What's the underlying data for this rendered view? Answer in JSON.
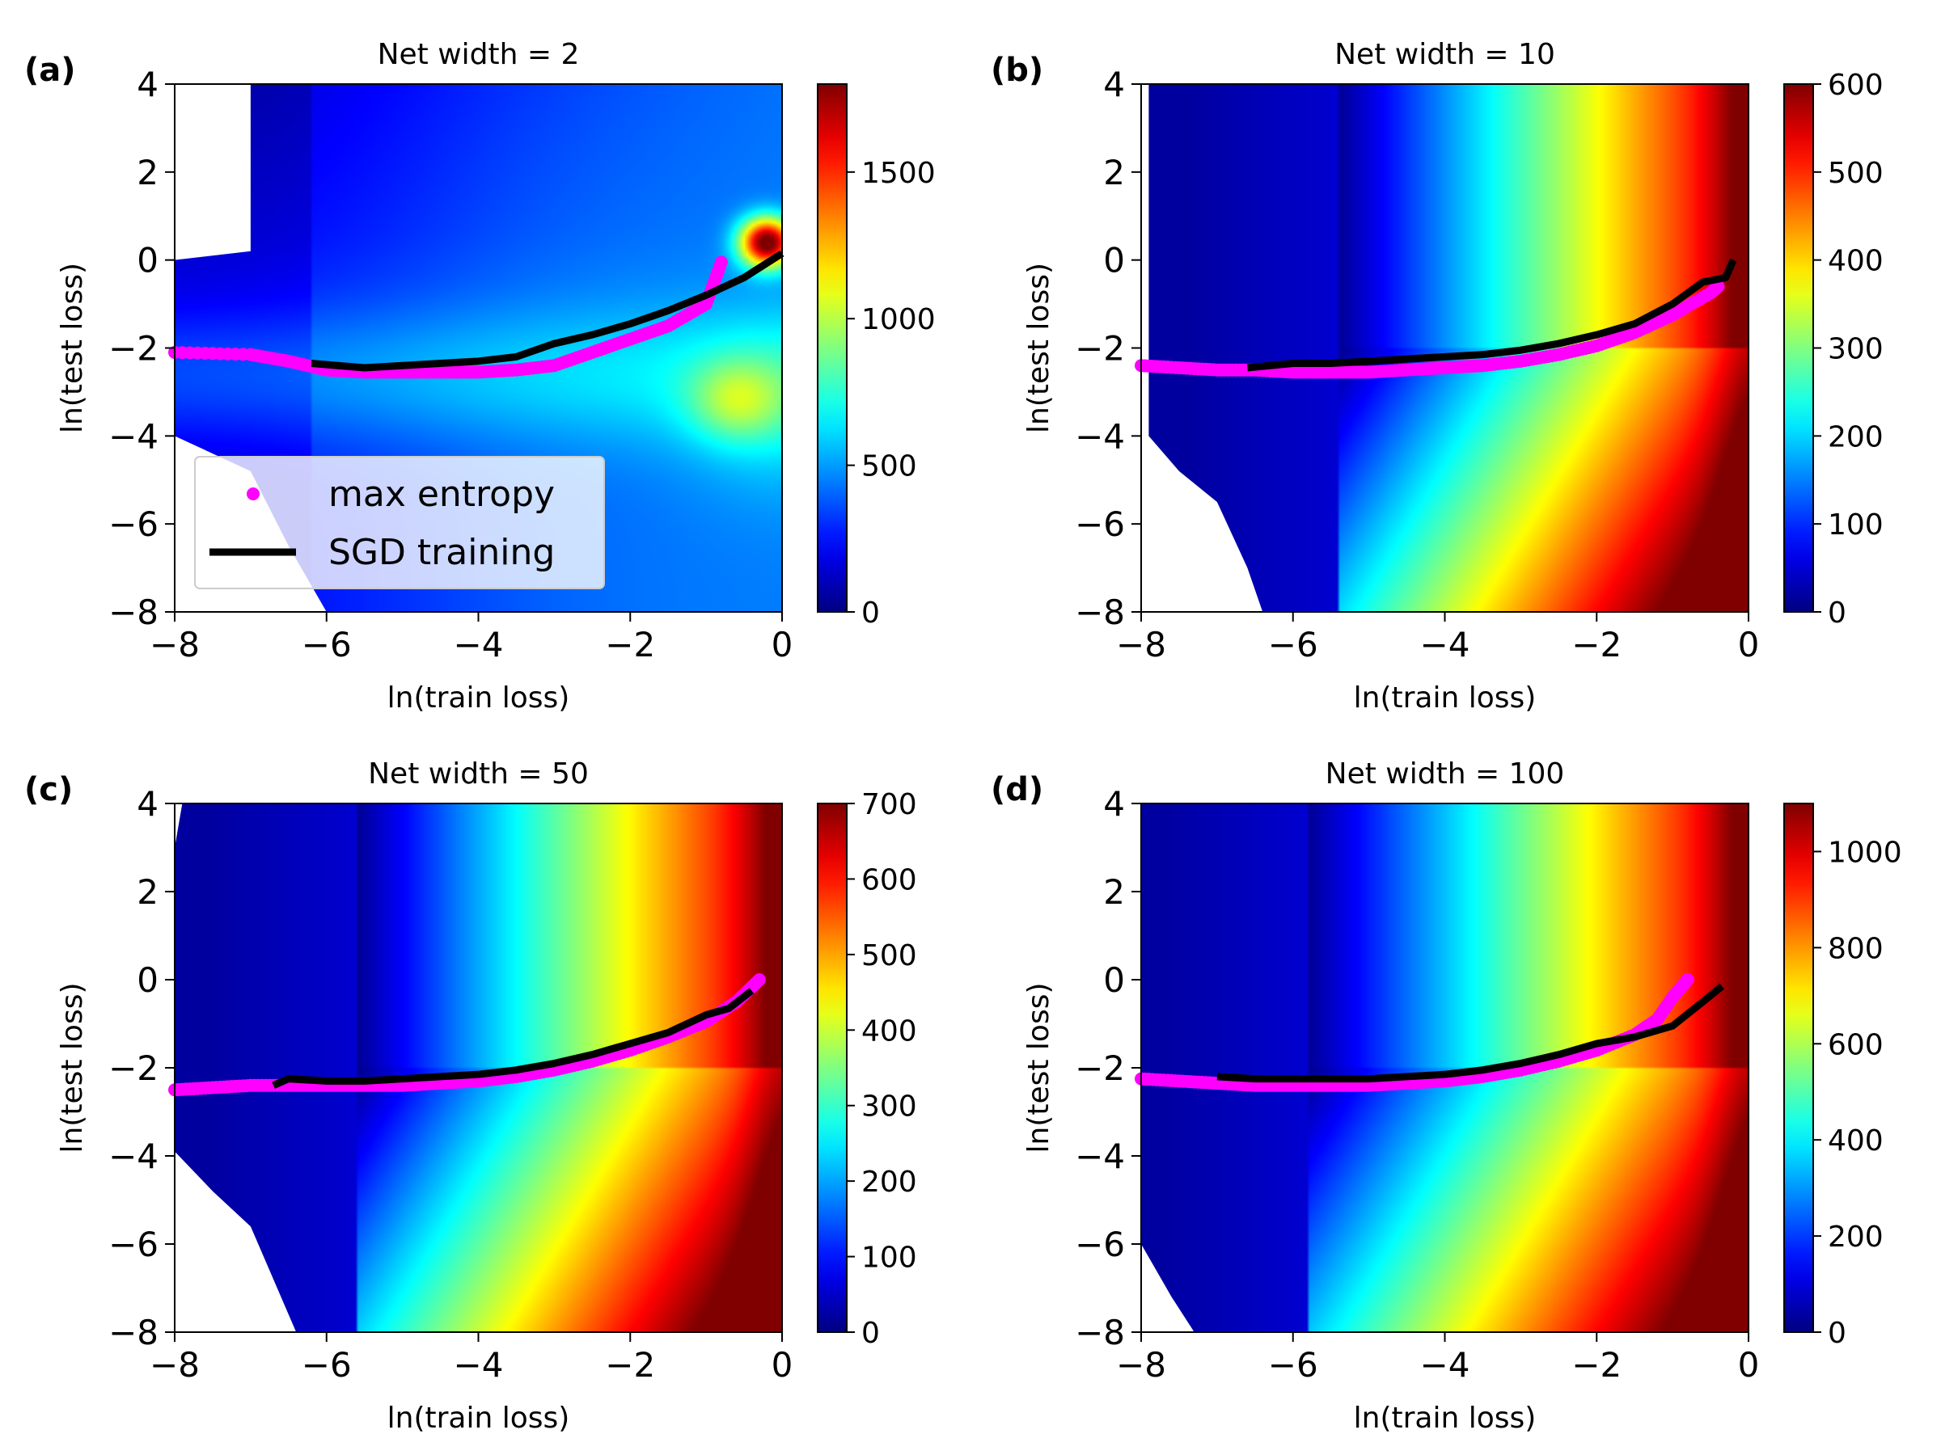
{
  "chart_data": [
    {
      "panel": "(a)",
      "type": "heatmap",
      "title": "Net width = 2",
      "xlabel": "ln(train loss)",
      "ylabel": "ln(test loss)",
      "xlim": [
        -8,
        0
      ],
      "ylim": [
        -8,
        4
      ],
      "xticks": [
        -8,
        -6,
        -4,
        -2,
        0
      ],
      "xtick_labels": [
        "−8",
        "−6",
        "−4",
        "−2",
        "0"
      ],
      "yticks": [
        4,
        2,
        0,
        -2,
        -4,
        -6,
        -8
      ],
      "ytick_labels": [
        "4",
        "2",
        "0",
        "−2",
        "−4",
        "−6",
        "−8"
      ],
      "colorbar": {
        "min": 0,
        "max": 1800,
        "ticks": [
          0,
          500,
          1000,
          1500
        ],
        "tick_labels": [
          "0",
          "500",
          "1000",
          "1500"
        ],
        "colormap": "jet"
      },
      "series": [
        {
          "name": "max entropy",
          "style": "scatter",
          "color": "#ff00ff",
          "x": [
            -8.0,
            -7.0,
            -6.5,
            -6.0,
            -5.5,
            -5.0,
            -4.5,
            -4.0,
            -3.5,
            -3.0,
            -2.5,
            -2.0,
            -1.5,
            -1.0,
            -0.8
          ],
          "y": [
            -2.1,
            -2.15,
            -2.3,
            -2.5,
            -2.55,
            -2.55,
            -2.55,
            -2.55,
            -2.5,
            -2.4,
            -2.1,
            -1.8,
            -1.5,
            -1.0,
            -0.05
          ]
        },
        {
          "name": "SGD training",
          "style": "line",
          "color": "#000000",
          "x": [
            -6.2,
            -5.5,
            -5.0,
            -4.5,
            -4.0,
            -3.5,
            -3.0,
            -2.5,
            -2.0,
            -1.5,
            -1.0,
            -0.5,
            0.0
          ],
          "y": [
            -2.35,
            -2.45,
            -2.4,
            -2.35,
            -2.3,
            -2.2,
            -1.9,
            -1.7,
            -1.45,
            -1.15,
            -0.8,
            -0.4,
            0.15
          ]
        }
      ],
      "legend": {
        "location": "lower-left",
        "entries": [
          "max entropy",
          "SGD training"
        ]
      },
      "field": {
        "type": "narrow",
        "base": 280,
        "base_norm_note": "values in colorbar units",
        "hotspot": {
          "x": -0.2,
          "y": 0.4,
          "peak": 1650
        },
        "blob": {
          "x": -0.6,
          "y": -3.2,
          "peak": 650
        }
      },
      "mask": {
        "left_edge_above": [
          [
            -7.0,
            4
          ],
          [
            -7.0,
            0.2
          ],
          [
            -8.0,
            0.0
          ]
        ],
        "lower_left": [
          [
            -8.0,
            -4.0
          ],
          [
            -7.0,
            -4.8
          ],
          [
            -6.5,
            -6.5
          ],
          [
            -6.0,
            -8.0
          ]
        ]
      }
    },
    {
      "panel": "(b)",
      "type": "heatmap",
      "title": "Net width = 10",
      "xlabel": "ln(train loss)",
      "ylabel": "ln(test loss)",
      "xlim": [
        -8,
        0
      ],
      "ylim": [
        -8,
        4
      ],
      "xticks": [
        -8,
        -6,
        -4,
        -2,
        0
      ],
      "xtick_labels": [
        "−8",
        "−6",
        "−4",
        "−2",
        "0"
      ],
      "yticks": [
        4,
        2,
        0,
        -2,
        -4,
        -6,
        -8
      ],
      "ytick_labels": [
        "4",
        "2",
        "0",
        "−2",
        "−4",
        "−6",
        "−8"
      ],
      "colorbar": {
        "min": 0,
        "max": 600,
        "ticks": [
          0,
          100,
          200,
          300,
          400,
          500,
          600
        ],
        "tick_labels": [
          "0",
          "100",
          "200",
          "300",
          "400",
          "500",
          "600"
        ],
        "colormap": "jet"
      },
      "series": [
        {
          "name": "max entropy",
          "style": "scatter",
          "color": "#ff00ff",
          "x": [
            -8.0,
            -7.5,
            -7.0,
            -6.5,
            -6.0,
            -5.5,
            -5.0,
            -4.5,
            -4.0,
            -3.5,
            -3.0,
            -2.5,
            -2.0,
            -1.5,
            -1.0,
            -0.5,
            -0.4
          ],
          "y": [
            -2.4,
            -2.45,
            -2.5,
            -2.5,
            -2.55,
            -2.55,
            -2.55,
            -2.5,
            -2.45,
            -2.4,
            -2.3,
            -2.15,
            -1.95,
            -1.65,
            -1.25,
            -0.75,
            -0.6
          ]
        },
        {
          "name": "SGD training",
          "style": "line",
          "color": "#000000",
          "x": [
            -6.6,
            -6.0,
            -5.5,
            -5.0,
            -4.5,
            -4.0,
            -3.5,
            -3.0,
            -2.5,
            -2.0,
            -1.5,
            -1.0,
            -0.6,
            -0.3,
            -0.2
          ],
          "y": [
            -2.45,
            -2.35,
            -2.35,
            -2.3,
            -2.25,
            -2.2,
            -2.15,
            -2.05,
            -1.9,
            -1.7,
            -1.45,
            -1.0,
            -0.5,
            -0.4,
            0.0
          ]
        }
      ],
      "field": {
        "type": "broad",
        "dark_band": -5.4
      },
      "mask": {
        "lower_left": [
          [
            -7.9,
            4
          ],
          [
            -7.9,
            -1.0
          ],
          [
            -7.9,
            -4.0
          ],
          [
            -7.5,
            -4.8
          ],
          [
            -7.0,
            -5.5
          ],
          [
            -6.6,
            -7.0
          ],
          [
            -6.4,
            -8.0
          ]
        ]
      }
    },
    {
      "panel": "(c)",
      "type": "heatmap",
      "title": "Net width = 50",
      "xlabel": "ln(train loss)",
      "ylabel": "ln(test loss)",
      "xlim": [
        -8,
        0
      ],
      "ylim": [
        -8,
        4
      ],
      "xticks": [
        -8,
        -6,
        -4,
        -2,
        0
      ],
      "xtick_labels": [
        "−8",
        "−6",
        "−4",
        "−2",
        "0"
      ],
      "yticks": [
        4,
        2,
        0,
        -2,
        -4,
        -6,
        -8
      ],
      "ytick_labels": [
        "4",
        "2",
        "0",
        "−2",
        "−4",
        "−6",
        "−8"
      ],
      "colorbar": {
        "min": 0,
        "max": 700,
        "ticks": [
          0,
          100,
          200,
          300,
          400,
          500,
          600,
          700
        ],
        "tick_labels": [
          "0",
          "100",
          "200",
          "300",
          "400",
          "500",
          "600",
          "700"
        ],
        "colormap": "jet"
      },
      "series": [
        {
          "name": "max entropy",
          "style": "scatter",
          "color": "#ff00ff",
          "x": [
            -8.0,
            -7.5,
            -7.0,
            -6.5,
            -6.0,
            -5.5,
            -5.0,
            -4.5,
            -4.0,
            -3.5,
            -3.0,
            -2.5,
            -2.0,
            -1.5,
            -1.0,
            -0.6,
            -0.3
          ],
          "y": [
            -2.5,
            -2.45,
            -2.4,
            -2.4,
            -2.4,
            -2.4,
            -2.4,
            -2.35,
            -2.3,
            -2.2,
            -2.05,
            -1.85,
            -1.6,
            -1.3,
            -0.95,
            -0.5,
            0.0
          ]
        },
        {
          "name": "SGD training",
          "style": "line",
          "color": "#000000",
          "x": [
            -6.7,
            -6.5,
            -6.0,
            -5.5,
            -5.0,
            -4.5,
            -4.0,
            -3.5,
            -3.0,
            -2.5,
            -2.0,
            -1.5,
            -1.0,
            -0.7,
            -0.4
          ],
          "y": [
            -2.4,
            -2.25,
            -2.3,
            -2.3,
            -2.25,
            -2.2,
            -2.15,
            -2.05,
            -1.9,
            -1.7,
            -1.45,
            -1.2,
            -0.8,
            -0.65,
            -0.25
          ]
        }
      ],
      "field": {
        "type": "broad",
        "dark_band": -5.6
      },
      "mask": {
        "lower_left": [
          [
            -7.9,
            4
          ],
          [
            -8.0,
            3.0
          ],
          [
            -8.0,
            -3.9
          ],
          [
            -7.5,
            -4.8
          ],
          [
            -7.0,
            -5.6
          ],
          [
            -6.6,
            -7.2
          ],
          [
            -6.4,
            -8.0
          ]
        ]
      }
    },
    {
      "panel": "(d)",
      "type": "heatmap",
      "title": "Net width = 100",
      "xlabel": "ln(train loss)",
      "ylabel": "ln(test loss)",
      "xlim": [
        -8,
        0
      ],
      "ylim": [
        -8,
        4
      ],
      "xticks": [
        -8,
        -6,
        -4,
        -2,
        0
      ],
      "xtick_labels": [
        "−8",
        "−6",
        "−4",
        "−2",
        "0"
      ],
      "yticks": [
        4,
        2,
        0,
        -2,
        -4,
        -6,
        -8
      ],
      "ytick_labels": [
        "4",
        "2",
        "0",
        "−2",
        "−4",
        "−6",
        "−8"
      ],
      "colorbar": {
        "min": 0,
        "max": 1100,
        "ticks": [
          0,
          200,
          400,
          600,
          800,
          1000
        ],
        "tick_labels": [
          "0",
          "200",
          "400",
          "600",
          "800",
          "1000"
        ],
        "colormap": "jet"
      },
      "series": [
        {
          "name": "max entropy",
          "style": "scatter",
          "color": "#ff00ff",
          "x": [
            -8.0,
            -7.5,
            -7.0,
            -6.5,
            -6.0,
            -5.5,
            -5.0,
            -4.5,
            -4.0,
            -3.5,
            -3.0,
            -2.5,
            -2.0,
            -1.5,
            -1.2,
            -1.0,
            -0.8
          ],
          "y": [
            -2.25,
            -2.3,
            -2.35,
            -2.4,
            -2.4,
            -2.4,
            -2.4,
            -2.35,
            -2.3,
            -2.2,
            -2.05,
            -1.85,
            -1.6,
            -1.25,
            -0.9,
            -0.4,
            0.0
          ]
        },
        {
          "name": "SGD training",
          "style": "line",
          "color": "#000000",
          "x": [
            -7.0,
            -6.5,
            -6.0,
            -5.5,
            -5.0,
            -4.5,
            -4.0,
            -3.5,
            -3.0,
            -2.5,
            -2.0,
            -1.5,
            -1.0,
            -0.6,
            -0.35
          ],
          "y": [
            -2.2,
            -2.25,
            -2.25,
            -2.25,
            -2.25,
            -2.2,
            -2.15,
            -2.05,
            -1.9,
            -1.7,
            -1.45,
            -1.3,
            -1.05,
            -0.5,
            -0.15
          ]
        }
      ],
      "field": {
        "type": "broad",
        "dark_band": -5.8
      },
      "mask": {
        "lower_left": [
          [
            -8.0,
            -6.0
          ],
          [
            -7.6,
            -7.2
          ],
          [
            -7.3,
            -8.0
          ]
        ]
      }
    }
  ]
}
